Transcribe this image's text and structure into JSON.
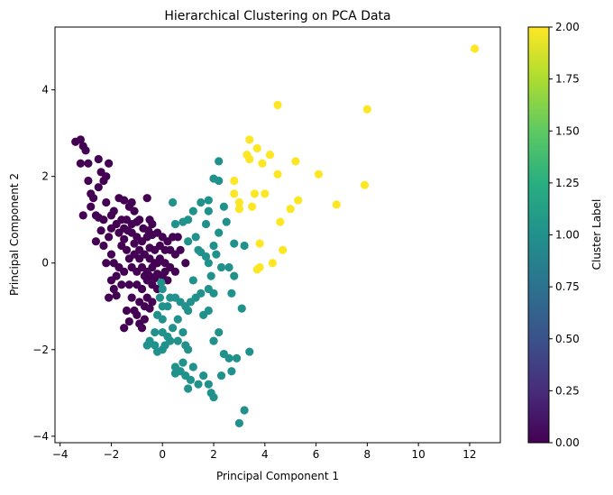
{
  "chart_data": {
    "type": "scatter",
    "title": "Hierarchical Clustering on PCA Data",
    "xlabel": "Principal Component 1",
    "ylabel": "Principal Component 2",
    "xlim": [
      -4.2,
      13.2
    ],
    "ylim": [
      -4.15,
      5.45
    ],
    "xticks": [
      -4,
      -2,
      0,
      2,
      4,
      6,
      8,
      10,
      12
    ],
    "yticks": [
      -4,
      -2,
      0,
      2,
      4
    ],
    "colorbar": {
      "label": "Cluster Label",
      "range": [
        0.0,
        2.0
      ],
      "ticks": [
        "0.00",
        "0.25",
        "0.50",
        "0.75",
        "1.00",
        "1.25",
        "1.50",
        "1.75",
        "2.00"
      ],
      "colormap": "viridis"
    },
    "grid": false,
    "series": [
      {
        "cluster": 0,
        "color": "#440154",
        "points": [
          [
            -3.4,
            2.8
          ],
          [
            -3.2,
            2.85
          ],
          [
            -3.1,
            2.7
          ],
          [
            -3.0,
            2.6
          ],
          [
            -3.2,
            2.3
          ],
          [
            -2.9,
            2.3
          ],
          [
            -2.9,
            1.9
          ],
          [
            -2.8,
            1.6
          ],
          [
            -2.7,
            1.5
          ],
          [
            -2.8,
            1.3
          ],
          [
            -2.6,
            1.1
          ],
          [
            -3.1,
            1.1
          ],
          [
            -2.5,
            2.4
          ],
          [
            -2.4,
            2.1
          ],
          [
            -2.3,
            1.9
          ],
          [
            -2.2,
            2.0
          ],
          [
            -2.1,
            2.3
          ],
          [
            -2.5,
            1.75
          ],
          [
            -2.2,
            1.4
          ],
          [
            -2.6,
            0.5
          ],
          [
            -2.4,
            0.75
          ],
          [
            -2.0,
            1.1
          ],
          [
            -1.9,
            1.2
          ],
          [
            -1.7,
            1.5
          ],
          [
            -1.5,
            1.45
          ],
          [
            -1.3,
            1.3
          ],
          [
            -1.2,
            1.4
          ],
          [
            -1.1,
            1.2
          ],
          [
            -0.9,
            1.0
          ],
          [
            -0.6,
            1.5
          ],
          [
            -0.5,
            1.0
          ],
          [
            -0.4,
            0.9
          ],
          [
            -2.5,
            1.05
          ],
          [
            -2.3,
            1.0
          ],
          [
            -2.0,
            0.8
          ],
          [
            -1.6,
            1.0
          ],
          [
            -1.5,
            0.8
          ],
          [
            -1.4,
            1.0
          ],
          [
            -1.8,
            0.9
          ],
          [
            -1.7,
            0.7
          ],
          [
            -2.1,
            0.6
          ],
          [
            -2.3,
            0.4
          ],
          [
            -2.0,
            0.2
          ],
          [
            -1.9,
            0.0
          ],
          [
            -1.8,
            -0.3
          ],
          [
            -1.9,
            -0.6
          ],
          [
            -1.8,
            -0.75
          ],
          [
            -2.1,
            -0.8
          ],
          [
            -1.6,
            -0.5
          ],
          [
            -1.5,
            -0.2
          ],
          [
            -1.3,
            -0.5
          ],
          [
            -1.2,
            -0.8
          ],
          [
            -1.1,
            -1.1
          ],
          [
            -1.0,
            -1.2
          ],
          [
            -0.9,
            -1.4
          ],
          [
            -0.8,
            -1.5
          ],
          [
            -1.4,
            -1.1
          ],
          [
            -1.3,
            -1.35
          ],
          [
            -1.5,
            -1.5
          ],
          [
            -0.7,
            -1.3
          ],
          [
            -1.2,
            0.7
          ],
          [
            -1.0,
            0.6
          ],
          [
            -0.8,
            0.5
          ],
          [
            -0.6,
            0.6
          ],
          [
            -0.4,
            0.65
          ],
          [
            -0.2,
            0.7
          ],
          [
            0.0,
            0.6
          ],
          [
            0.2,
            0.5
          ],
          [
            0.3,
            0.3
          ],
          [
            0.5,
            0.2
          ],
          [
            0.7,
            0.3
          ],
          [
            0.9,
            0.0
          ],
          [
            -1.4,
            0.3
          ],
          [
            -1.3,
            0.1
          ],
          [
            -1.1,
            0.2
          ],
          [
            -0.9,
            0.3
          ],
          [
            -0.7,
            0.2
          ],
          [
            -0.5,
            0.1
          ],
          [
            -0.3,
            0.0
          ],
          [
            -0.1,
            0.1
          ],
          [
            0.1,
            0.0
          ],
          [
            0.3,
            -0.1
          ],
          [
            0.5,
            -0.2
          ],
          [
            -1.2,
            -0.1
          ],
          [
            -1.0,
            -0.2
          ],
          [
            -0.8,
            -0.1
          ],
          [
            -0.6,
            -0.2
          ],
          [
            -0.4,
            -0.1
          ],
          [
            -0.2,
            -0.25
          ],
          [
            0.0,
            -0.3
          ],
          [
            0.2,
            -0.4
          ],
          [
            -1.0,
            -0.5
          ],
          [
            -0.8,
            -0.6
          ],
          [
            -0.6,
            -0.4
          ],
          [
            -0.4,
            -0.5
          ],
          [
            -0.2,
            -0.6
          ],
          [
            -0.9,
            -0.9
          ],
          [
            -0.6,
            -0.8
          ],
          [
            -0.4,
            -0.9
          ],
          [
            -0.7,
            -1.0
          ],
          [
            -0.5,
            -1.05
          ],
          [
            -1.6,
            0.4
          ],
          [
            -1.5,
            0.55
          ],
          [
            -1.1,
            0.45
          ],
          [
            -0.9,
            0.1
          ],
          [
            -0.7,
            -0.3
          ],
          [
            -0.5,
            0.35
          ],
          [
            -0.3,
            0.3
          ],
          [
            -0.1,
            0.4
          ],
          [
            0.1,
            0.3
          ],
          [
            0.4,
            0.6
          ],
          [
            0.6,
            0.6
          ],
          [
            0.1,
            -0.2
          ],
          [
            -0.2,
            0.0
          ],
          [
            -0.3,
            -0.35
          ],
          [
            -0.5,
            -0.3
          ],
          [
            -2.2,
            0.0
          ],
          [
            -2.0,
            -0.4
          ],
          [
            -1.7,
            -0.1
          ],
          [
            -1.2,
            0.9
          ],
          [
            -1.0,
            0.95
          ],
          [
            -1.35,
            0.75
          ],
          [
            -0.75,
            0.8
          ],
          [
            -0.55,
            0.75
          ]
        ]
      },
      {
        "cluster": 1,
        "color": "#21918c",
        "points": [
          [
            2.2,
            2.35
          ],
          [
            2.0,
            1.95
          ],
          [
            2.2,
            1.9
          ],
          [
            1.8,
            1.45
          ],
          [
            1.5,
            1.4
          ],
          [
            2.4,
            1.3
          ],
          [
            1.8,
            1.2
          ],
          [
            1.2,
            1.2
          ],
          [
            1.0,
            1.0
          ],
          [
            0.8,
            0.95
          ],
          [
            0.5,
            0.9
          ],
          [
            0.4,
            1.4
          ],
          [
            1.7,
            0.9
          ],
          [
            2.2,
            0.7
          ],
          [
            2.5,
            0.95
          ],
          [
            1.4,
            0.3
          ],
          [
            1.5,
            0.25
          ],
          [
            1.8,
            0.0
          ],
          [
            2.0,
            0.4
          ],
          [
            2.1,
            0.2
          ],
          [
            1.7,
            0.15
          ],
          [
            1.0,
            0.5
          ],
          [
            1.3,
            0.6
          ],
          [
            2.8,
            0.45
          ],
          [
            3.2,
            0.4
          ],
          [
            2.3,
            -0.1
          ],
          [
            2.6,
            -0.1
          ],
          [
            2.8,
            -0.3
          ],
          [
            2.7,
            -0.7
          ],
          [
            1.9,
            -0.3
          ],
          [
            1.2,
            -0.4
          ],
          [
            1.8,
            -0.6
          ],
          [
            1.5,
            -0.7
          ],
          [
            1.3,
            -0.8
          ],
          [
            2.0,
            -0.7
          ],
          [
            1.1,
            -0.9
          ],
          [
            0.9,
            -1.0
          ],
          [
            0.6,
            -1.3
          ],
          [
            0.7,
            -0.9
          ],
          [
            0.5,
            -0.8
          ],
          [
            0.0,
            -0.6
          ],
          [
            0.3,
            -0.8
          ],
          [
            0.2,
            -1.0
          ],
          [
            0.0,
            -1.0
          ],
          [
            -0.2,
            -1.2
          ],
          [
            0.0,
            -1.3
          ],
          [
            0.4,
            -1.5
          ],
          [
            0.2,
            -1.7
          ],
          [
            0.0,
            -1.6
          ],
          [
            -0.3,
            -1.6
          ],
          [
            -0.5,
            -1.8
          ],
          [
            -0.3,
            -1.9
          ],
          [
            -0.6,
            -1.9
          ],
          [
            0.0,
            -2.0
          ],
          [
            -0.2,
            -2.05
          ],
          [
            0.1,
            -1.9
          ],
          [
            0.3,
            -1.8
          ],
          [
            0.6,
            -1.8
          ],
          [
            0.9,
            -1.9
          ],
          [
            1.0,
            -2.0
          ],
          [
            0.8,
            -1.6
          ],
          [
            1.6,
            -1.2
          ],
          [
            1.8,
            -1.1
          ],
          [
            1.0,
            -1.1
          ],
          [
            2.2,
            -1.6
          ],
          [
            2.0,
            -1.8
          ],
          [
            3.1,
            -1.05
          ],
          [
            3.4,
            -2.05
          ],
          [
            2.4,
            -2.1
          ],
          [
            2.6,
            -2.2
          ],
          [
            2.9,
            -2.2
          ],
          [
            0.8,
            -2.3
          ],
          [
            0.5,
            -2.4
          ],
          [
            0.7,
            -2.5
          ],
          [
            0.9,
            -2.6
          ],
          [
            1.1,
            -2.7
          ],
          [
            1.0,
            -2.9
          ],
          [
            1.4,
            -2.8
          ],
          [
            1.6,
            -2.6
          ],
          [
            1.8,
            -2.8
          ],
          [
            1.9,
            -3.0
          ],
          [
            2.0,
            -3.1
          ],
          [
            2.3,
            -2.6
          ],
          [
            2.7,
            -2.5
          ],
          [
            3.2,
            -3.4
          ],
          [
            3.0,
            -3.7
          ],
          [
            0.5,
            -2.55
          ],
          [
            1.2,
            -2.4
          ],
          [
            -0.1,
            -0.8
          ],
          [
            -0.05,
            -0.45
          ]
        ]
      },
      {
        "cluster": 2,
        "color": "#fde725",
        "points": [
          [
            12.2,
            4.95
          ],
          [
            4.5,
            3.65
          ],
          [
            8.0,
            3.55
          ],
          [
            3.4,
            2.85
          ],
          [
            3.7,
            2.65
          ],
          [
            3.3,
            2.5
          ],
          [
            3.4,
            2.4
          ],
          [
            4.2,
            2.5
          ],
          [
            3.9,
            2.3
          ],
          [
            5.2,
            2.35
          ],
          [
            4.5,
            2.05
          ],
          [
            6.1,
            2.05
          ],
          [
            2.8,
            1.9
          ],
          [
            7.9,
            1.8
          ],
          [
            2.8,
            1.6
          ],
          [
            3.6,
            1.6
          ],
          [
            4.0,
            1.6
          ],
          [
            5.3,
            1.45
          ],
          [
            3.0,
            1.4
          ],
          [
            3.5,
            1.3
          ],
          [
            6.8,
            1.35
          ],
          [
            5.0,
            1.25
          ],
          [
            3.0,
            1.25
          ],
          [
            4.6,
            0.95
          ],
          [
            3.8,
            0.45
          ],
          [
            4.7,
            0.3
          ],
          [
            4.3,
            0.0
          ],
          [
            3.7,
            -0.15
          ],
          [
            3.8,
            -0.1
          ]
        ]
      }
    ]
  }
}
